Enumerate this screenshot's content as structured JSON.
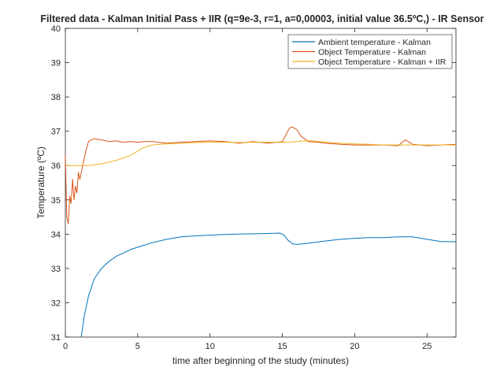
{
  "chart_data": {
    "type": "line",
    "title": "Filtered data  - Kalman Initial Pass + IIR (q=9e-3, r=1, a=0,00003, initial value 36.5ºC,) - IR Sensor",
    "xlabel": "time after beginning of the study (minutes)",
    "ylabel": "Temperature (ºC)",
    "xlim": [
      0,
      27
    ],
    "ylim": [
      31,
      40
    ],
    "xticks": [
      0,
      5,
      10,
      15,
      20,
      25
    ],
    "xtick_labels": [
      "0",
      "5",
      "10",
      "15",
      "20",
      "25"
    ],
    "yticks": [
      31,
      32,
      33,
      34,
      35,
      36,
      37,
      38,
      39,
      40
    ],
    "ytick_labels": [
      "31",
      "32",
      "33",
      "34",
      "35",
      "36",
      "37",
      "38",
      "39",
      "40"
    ],
    "grid": false,
    "legend_position": "top-right",
    "series": [
      {
        "name": "Ambient temperature - Kalman",
        "color": "#0072BD",
        "x": [
          1.1,
          1.3,
          1.6,
          2.0,
          2.5,
          3.0,
          3.5,
          4.0,
          4.5,
          5.0,
          6.0,
          7.0,
          8.0,
          9.0,
          10.0,
          11.0,
          12.0,
          13.0,
          14.0,
          14.8,
          15.1,
          15.4,
          15.7,
          16.0,
          16.5,
          17.0,
          18.0,
          19.0,
          20.0,
          21.0,
          22.0,
          23.0,
          24.0,
          25.0,
          26.0,
          27.0
        ],
        "y": [
          31.0,
          31.6,
          32.2,
          32.7,
          33.0,
          33.2,
          33.35,
          33.45,
          33.55,
          33.62,
          33.75,
          33.85,
          33.92,
          33.95,
          33.97,
          33.99,
          34.0,
          34.01,
          34.02,
          34.03,
          33.98,
          33.82,
          33.72,
          33.7,
          33.72,
          33.75,
          33.8,
          33.85,
          33.88,
          33.9,
          33.9,
          33.92,
          33.92,
          33.85,
          33.78,
          33.78
        ]
      },
      {
        "name": "Object Temperature - Kalman",
        "color": "#D95319",
        "x": [
          0,
          0.1,
          0.2,
          0.3,
          0.4,
          0.5,
          0.6,
          0.7,
          0.8,
          0.9,
          1.0,
          1.2,
          1.4,
          1.6,
          1.8,
          2.0,
          2.5,
          3.0,
          3.5,
          4.0,
          4.5,
          5.0,
          5.5,
          6.0,
          7.0,
          8.0,
          9.0,
          10.0,
          11.0,
          12.0,
          13.0,
          14.0,
          15.0,
          15.2,
          15.5,
          15.7,
          16.0,
          16.3,
          16.8,
          17.5,
          18.0,
          19.0,
          20.0,
          21.0,
          22.0,
          23.0,
          23.5,
          24.0,
          25.0,
          26.0,
          27.0
        ],
        "y": [
          36.3,
          34.5,
          34.3,
          35.1,
          34.9,
          35.6,
          35.0,
          35.4,
          35.2,
          35.8,
          35.6,
          36.0,
          36.4,
          36.7,
          36.75,
          36.78,
          36.75,
          36.7,
          36.72,
          36.68,
          36.7,
          36.68,
          36.7,
          36.7,
          36.65,
          36.68,
          36.7,
          36.72,
          36.7,
          36.65,
          36.7,
          36.65,
          36.7,
          36.85,
          37.1,
          37.12,
          37.05,
          36.85,
          36.7,
          36.68,
          36.65,
          36.62,
          36.6,
          36.6,
          36.6,
          36.58,
          36.75,
          36.62,
          36.58,
          36.6,
          36.62
        ]
      },
      {
        "name": "Object Temperature - Kalman + IIR",
        "color": "#EDB120",
        "x": [
          0,
          1.0,
          1.5,
          2.0,
          2.5,
          3.0,
          3.5,
          4.0,
          4.5,
          5.0,
          5.3,
          5.6,
          6.0,
          6.5,
          7.0,
          8.0,
          9.0,
          10.0,
          11.0,
          12.0,
          13.0,
          14.0,
          15.0,
          15.5,
          16.0,
          16.5,
          17.0,
          18.0,
          19.0,
          20.0,
          21.0,
          22.0,
          23.0,
          24.0,
          25.0,
          26.0,
          27.0
        ],
        "y": [
          36.0,
          36.0,
          36.0,
          36.02,
          36.05,
          36.1,
          36.15,
          36.22,
          36.3,
          36.42,
          36.5,
          36.55,
          36.6,
          36.62,
          36.63,
          36.65,
          36.67,
          36.68,
          36.68,
          36.67,
          36.68,
          36.68,
          36.68,
          36.68,
          36.7,
          36.72,
          36.72,
          36.68,
          36.65,
          36.63,
          36.62,
          36.6,
          36.6,
          36.6,
          36.6,
          36.6,
          36.6
        ]
      }
    ]
  }
}
